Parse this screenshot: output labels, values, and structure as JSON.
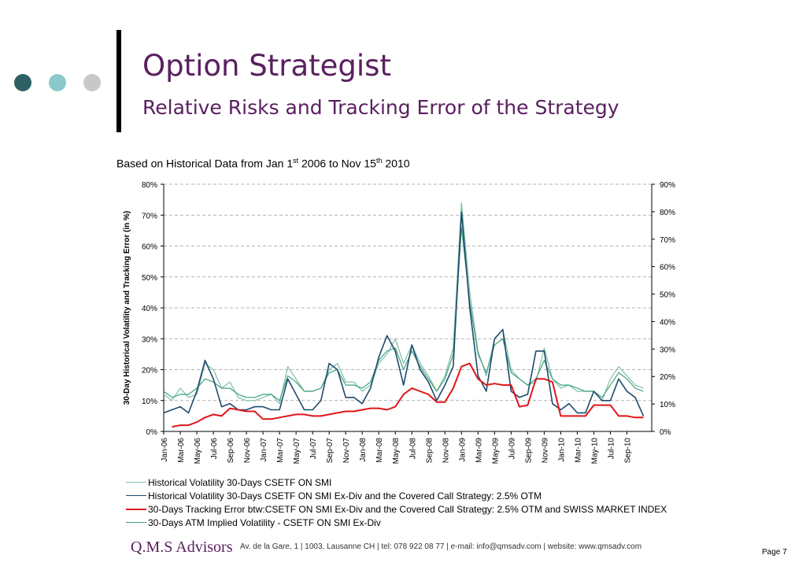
{
  "header": {
    "title": "Option Strategist",
    "subtitle": "Relative Risks and Tracking Error of the Strategy",
    "dot_colors": [
      "#2e6166",
      "#8cc9cc",
      "#c8c8c8"
    ]
  },
  "basis": {
    "prefix": "Based on Historical Data from Jan 1",
    "sup1": "st",
    "middle": " 2006 to Nov 15",
    "sup2": "th",
    "suffix": " 2010"
  },
  "chart_data": {
    "type": "line",
    "ylabel": "30-Day Historical Volatility and Tracking Error (in %)",
    "ylim": [
      0,
      80
    ],
    "y2lim": [
      0,
      90
    ],
    "yticks": [
      "0%",
      "10%",
      "20%",
      "30%",
      "40%",
      "50%",
      "60%",
      "70%",
      "80%"
    ],
    "y2ticks": [
      "0%",
      "10%",
      "20%",
      "30%",
      "40%",
      "50%",
      "60%",
      "70%",
      "80%",
      "90%"
    ],
    "grid": true,
    "legend_position": "bottom",
    "x_tick_labels": [
      "Jan-06",
      "Mar-06",
      "May-06",
      "Jul-06",
      "Sep-06",
      "Nov-06",
      "Jan-07",
      "Mar-07",
      "May-07",
      "Jul-07",
      "Sep-07",
      "Nov-07",
      "Jan-08",
      "Mar-08",
      "May-08",
      "Jul-08",
      "Sep-08",
      "Nov-08",
      "Jan-09",
      "Mar-09",
      "May-09",
      "Jul-09",
      "Sep-09",
      "Nov-09",
      "Jan-10",
      "Mar-10",
      "May-10",
      "Jul-10",
      "Sep-10"
    ],
    "x_range": [
      0,
      59
    ],
    "series": [
      {
        "name": "Historical Volatility 30-Days CSETF ON SMI",
        "color": "#7fbfa6",
        "x": [
          0,
          1,
          2,
          3,
          4,
          5,
          6,
          7,
          8,
          9,
          10,
          11,
          12,
          13,
          14,
          15,
          16,
          17,
          18,
          19,
          20,
          21,
          22,
          23,
          24,
          25,
          26,
          27,
          28,
          29,
          30,
          31,
          32,
          33,
          34,
          35,
          36,
          37,
          38,
          39,
          40,
          41,
          42,
          43,
          44,
          45,
          46,
          47,
          48,
          49,
          50,
          51,
          52,
          53,
          54,
          55,
          56,
          57,
          58
        ],
        "values": [
          12,
          10,
          14,
          11,
          12,
          22,
          20,
          14,
          16,
          11,
          10,
          10,
          11,
          12,
          9,
          21,
          17,
          13,
          13,
          14,
          20,
          22,
          16,
          16,
          13,
          15,
          22,
          25,
          30,
          22,
          28,
          22,
          18,
          13,
          18,
          27,
          74,
          45,
          26,
          18,
          30,
          33,
          20,
          17,
          15,
          16,
          27,
          17,
          14,
          15,
          13,
          13,
          13,
          10,
          17,
          21,
          18,
          15,
          14
        ]
      },
      {
        "name": "Historical Volatility 30-Days CSETF ON SMI Ex-Div and the Covered Call Strategy: 2.5% OTM",
        "color": "#1f4a6e",
        "x": [
          0,
          1,
          2,
          3,
          4,
          5,
          6,
          7,
          8,
          9,
          10,
          11,
          12,
          13,
          14,
          15,
          16,
          17,
          18,
          19,
          20,
          21,
          22,
          23,
          24,
          25,
          26,
          27,
          28,
          29,
          30,
          31,
          32,
          33,
          34,
          35,
          36,
          37,
          38,
          39,
          40,
          41,
          42,
          43,
          44,
          45,
          46,
          47,
          48,
          49,
          50,
          51,
          52,
          53,
          54,
          55,
          56,
          57,
          58
        ],
        "values": [
          6,
          7,
          8,
          6,
          13,
          23,
          17,
          8,
          9,
          7,
          7,
          8,
          8,
          7,
          7,
          17,
          12,
          7,
          7,
          10,
          22,
          20,
          11,
          11,
          9,
          14,
          24,
          31,
          26,
          15,
          28,
          20,
          16,
          10,
          15,
          21,
          71,
          40,
          18,
          13,
          30,
          33,
          13,
          11,
          12,
          26,
          26,
          9,
          7,
          9,
          6,
          6,
          13,
          10,
          10,
          17,
          13,
          11,
          5
        ]
      },
      {
        "name": "30-Days Tracking Error btw:CSETF ON SMI Ex-Div and the Covered Call Strategy: 2.5% OTM and SWISS MARKET INDEX",
        "color": "#e0161b",
        "x": [
          1,
          2,
          3,
          4,
          5,
          6,
          7,
          8,
          9,
          10,
          11,
          12,
          13,
          14,
          15,
          16,
          17,
          18,
          19,
          20,
          21,
          22,
          23,
          24,
          25,
          26,
          27,
          28,
          29,
          30,
          31,
          32,
          33,
          34,
          35,
          36,
          37,
          38,
          39,
          40,
          41,
          42,
          43,
          44,
          45,
          46,
          47,
          48,
          49,
          50,
          51,
          52,
          53,
          54,
          55,
          56,
          57,
          58
        ],
        "values": [
          1.5,
          2,
          2,
          3,
          4.5,
          5.5,
          5,
          7.5,
          7,
          6.5,
          6.5,
          4,
          4,
          4.5,
          5,
          5.5,
          5.5,
          5,
          5,
          5.5,
          6,
          6.5,
          6.5,
          7,
          7.5,
          7.5,
          7,
          8,
          12,
          14,
          13,
          12,
          9.5,
          9.5,
          14,
          21,
          22,
          17,
          15,
          15.5,
          15,
          15,
          8,
          8.5,
          17,
          17,
          16,
          5,
          5,
          5,
          5,
          8.5,
          8.5,
          8.5,
          5,
          5,
          4.5,
          4.5
        ]
      },
      {
        "name": "30-Days ATM Implied Volatility - CSETF ON SMI Ex-Div",
        "color": "#3fa27a",
        "x": [
          0,
          1,
          2,
          3,
          4,
          5,
          6,
          7,
          8,
          9,
          10,
          11,
          12,
          13,
          14,
          15,
          16,
          17,
          18,
          19,
          20,
          21,
          22,
          23,
          24,
          25,
          26,
          27,
          28,
          29,
          30,
          31,
          32,
          33,
          34,
          35,
          36,
          37,
          38,
          39,
          40,
          41,
          42,
          43,
          44,
          45,
          46,
          47,
          48,
          49,
          50,
          51,
          52,
          53,
          54,
          55,
          56,
          57,
          58
        ],
        "values": [
          13,
          11,
          12,
          12,
          14,
          17,
          16,
          14,
          14,
          12,
          11,
          11,
          12,
          12,
          10,
          18,
          16,
          13,
          13,
          14,
          19,
          20,
          15,
          15,
          14,
          16,
          23,
          26,
          27,
          20,
          26,
          21,
          17,
          13,
          17,
          25,
          66,
          42,
          25,
          19,
          28,
          30,
          19,
          17,
          15,
          17,
          23,
          17,
          15,
          15,
          14,
          13,
          13,
          11,
          15,
          19,
          17,
          14,
          13
        ]
      }
    ]
  },
  "footer": {
    "logo": "Q.M.S Advisors",
    "text": "Av. de la Gare, 1 | 1003, Lausanne CH | tel: 078 922 08 77 | e-mail: info@qmsadv.com | website: www.qmsadv.com",
    "page": "Page 7"
  }
}
